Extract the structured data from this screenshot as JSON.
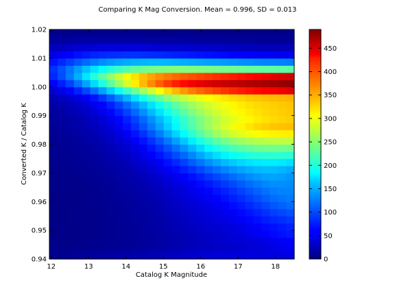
{
  "chart_data": {
    "type": "heatmap",
    "title": "Comparing K Mag Conversion. Mean = 0.996, SD = 0.013",
    "xlabel": "Catalog K Magnitude",
    "ylabel": "Converted K / Catalog K",
    "xlim": [
      11.95,
      18.5
    ],
    "ylim": [
      0.94,
      1.02
    ],
    "x_ticks": [
      "12",
      "13",
      "14",
      "15",
      "16",
      "17",
      "18"
    ],
    "x_tick_values": [
      12,
      13,
      14,
      15,
      16,
      17,
      18
    ],
    "y_ticks": [
      "0.94",
      "0.95",
      "0.96",
      "0.97",
      "0.98",
      "0.99",
      "1.00",
      "1.01",
      "1.02"
    ],
    "y_tick_values": [
      0.94,
      0.95,
      0.96,
      0.97,
      0.98,
      0.99,
      1.0,
      1.01,
      1.02
    ],
    "colorbar_range": [
      0,
      490
    ],
    "colorbar_ticks": [
      "0",
      "50",
      "100",
      "150",
      "200",
      "250",
      "300",
      "350",
      "400",
      "450"
    ],
    "colorbar_tick_values": [
      0,
      50,
      100,
      150,
      200,
      250,
      300,
      350,
      400,
      450
    ],
    "colormap": "jet",
    "grid": false,
    "bins": {
      "nx": 30,
      "ny": 32
    },
    "counts": [
      [
        6,
        7,
        9,
        11,
        12,
        14,
        14,
        16,
        18,
        20,
        22,
        24,
        25,
        27,
        30,
        32,
        34,
        37,
        39,
        41,
        43,
        44,
        45,
        46,
        46,
        46,
        46,
        46,
        46,
        47
      ],
      [
        5,
        5,
        6,
        7,
        7,
        8,
        9,
        10,
        11,
        12,
        13,
        15,
        17,
        19,
        21,
        24,
        26,
        28,
        30,
        32,
        34,
        35,
        35,
        37,
        40,
        42,
        45,
        48,
        52,
        55
      ],
      [
        4,
        4,
        4,
        5,
        6,
        6,
        7,
        8,
        9,
        10,
        11,
        13,
        15,
        17,
        20,
        22,
        25,
        27,
        30,
        32,
        35,
        37,
        39,
        41,
        43,
        45,
        48,
        52,
        56,
        60
      ],
      [
        3,
        4,
        4,
        5,
        5,
        6,
        7,
        8,
        9,
        10,
        11,
        13,
        15,
        17,
        20,
        22,
        25,
        28,
        30,
        33,
        35,
        38,
        42,
        46,
        50,
        55,
        60,
        65,
        69,
        73
      ],
      [
        3,
        4,
        4,
        5,
        5,
        6,
        7,
        8,
        9,
        10,
        12,
        14,
        16,
        19,
        22,
        25,
        28,
        32,
        35,
        38,
        40,
        43,
        46,
        50,
        55,
        60,
        65,
        69,
        73,
        77
      ],
      [
        3,
        3,
        4,
        5,
        5,
        6,
        7,
        8,
        10,
        11,
        13,
        15,
        17,
        20,
        23,
        27,
        30,
        34,
        37,
        41,
        44,
        48,
        52,
        57,
        63,
        68,
        74,
        79,
        83,
        87
      ],
      [
        3,
        3,
        4,
        5,
        5,
        6,
        7,
        9,
        10,
        12,
        14,
        16,
        19,
        22,
        25,
        29,
        33,
        37,
        41,
        45,
        49,
        53,
        58,
        64,
        70,
        77,
        84,
        91,
        95,
        99
      ],
      [
        3,
        3,
        4,
        5,
        5,
        6,
        8,
        9,
        11,
        13,
        15,
        17,
        20,
        24,
        28,
        32,
        36,
        41,
        45,
        50,
        55,
        60,
        66,
        73,
        80,
        87,
        95,
        102,
        108,
        113
      ],
      [
        3,
        4,
        4,
        5,
        6,
        7,
        8,
        10,
        12,
        14,
        16,
        19,
        22,
        26,
        30,
        35,
        40,
        45,
        50,
        56,
        62,
        68,
        75,
        82,
        90,
        98,
        106,
        113,
        117,
        120
      ],
      [
        4,
        4,
        5,
        5,
        6,
        7,
        9,
        11,
        13,
        15,
        18,
        21,
        25,
        29,
        34,
        39,
        45,
        51,
        57,
        63,
        70,
        77,
        85,
        93,
        101,
        109,
        116,
        122,
        124,
        125
      ],
      [
        4,
        5,
        5,
        6,
        7,
        8,
        10,
        12,
        14,
        17,
        20,
        24,
        28,
        33,
        39,
        45,
        51,
        58,
        65,
        72,
        80,
        88,
        96,
        105,
        113,
        120,
        126,
        130,
        130,
        128
      ],
      [
        5,
        5,
        6,
        7,
        8,
        9,
        11,
        14,
        17,
        20,
        24,
        28,
        33,
        39,
        46,
        53,
        60,
        68,
        77,
        86,
        95,
        104,
        113,
        121,
        128,
        134,
        138,
        140,
        138,
        134
      ],
      [
        5,
        6,
        7,
        8,
        9,
        11,
        13,
        16,
        19,
        23,
        28,
        34,
        40,
        48,
        56,
        65,
        75,
        85,
        96,
        106,
        116,
        125,
        133,
        140,
        146,
        150,
        152,
        152,
        149,
        144
      ],
      [
        6,
        7,
        8,
        9,
        11,
        13,
        16,
        19,
        23,
        28,
        34,
        41,
        49,
        58,
        69,
        80,
        92,
        105,
        117,
        129,
        140,
        150,
        158,
        165,
        170,
        173,
        175,
        175,
        173,
        170
      ],
      [
        7,
        8,
        9,
        11,
        13,
        15,
        18,
        22,
        27,
        33,
        40,
        49,
        59,
        70,
        83,
        97,
        111,
        126,
        141,
        155,
        168,
        179,
        188,
        195,
        200,
        203,
        205,
        206,
        205,
        203
      ],
      [
        8,
        9,
        10,
        12,
        14,
        17,
        21,
        26,
        32,
        39,
        48,
        58,
        70,
        84,
        99,
        115,
        132,
        149,
        166,
        182,
        196,
        208,
        218,
        226,
        232,
        236,
        238,
        239,
        239,
        238
      ],
      [
        9,
        10,
        12,
        14,
        17,
        20,
        25,
        31,
        38,
        47,
        58,
        70,
        85,
        101,
        119,
        138,
        157,
        176,
        195,
        212,
        227,
        240,
        251,
        259,
        265,
        270,
        273,
        275,
        276,
        276
      ],
      [
        10,
        12,
        14,
        17,
        20,
        24,
        30,
        37,
        46,
        57,
        70,
        85,
        102,
        121,
        141,
        162,
        183,
        204,
        224,
        242,
        258,
        272,
        284,
        293,
        300,
        305,
        309,
        312,
        313,
        314
      ],
      [
        12,
        14,
        17,
        20,
        24,
        29,
        36,
        45,
        56,
        69,
        84,
        101,
        120,
        140,
        161,
        182,
        203,
        223,
        242,
        259,
        274,
        288,
        300,
        310,
        318,
        325,
        330,
        334,
        336,
        337
      ],
      [
        13,
        15,
        18,
        22,
        27,
        33,
        41,
        51,
        63,
        77,
        93,
        111,
        130,
        150,
        170,
        190,
        209,
        227,
        244,
        259,
        272,
        284,
        294,
        302,
        309,
        315,
        320,
        324,
        327,
        330
      ],
      [
        15,
        18,
        22,
        27,
        33,
        41,
        51,
        63,
        77,
        93,
        111,
        130,
        150,
        170,
        190,
        209,
        227,
        244,
        259,
        272,
        284,
        294,
        302,
        309,
        315,
        320,
        324,
        327,
        330,
        332
      ],
      [
        18,
        22,
        27,
        33,
        41,
        51,
        63,
        77,
        93,
        111,
        130,
        150,
        170,
        190,
        209,
        227,
        244,
        259,
        272,
        284,
        294,
        302,
        309,
        315,
        320,
        324,
        327,
        330,
        332,
        334
      ],
      [
        25,
        30,
        37,
        46,
        57,
        70,
        86,
        105,
        126,
        148,
        170,
        192,
        213,
        232,
        249,
        264,
        277,
        288,
        297,
        305,
        312,
        318,
        323,
        327,
        331,
        334,
        337,
        339,
        341,
        343
      ],
      [
        40,
        50,
        62,
        77,
        95,
        115,
        138,
        162,
        187,
        212,
        237,
        261,
        284,
        305,
        324,
        341,
        356,
        369,
        380,
        389,
        397,
        404,
        410,
        416,
        421,
        425,
        429,
        433,
        437,
        441
      ],
      [
        60,
        75,
        93,
        115,
        140,
        167,
        196,
        226,
        256,
        286,
        314,
        340,
        363,
        383,
        400,
        414,
        425,
        434,
        441,
        447,
        452,
        456,
        460,
        463,
        466,
        469,
        472,
        475,
        478,
        480
      ],
      [
        80,
        98,
        120,
        145,
        172,
        200,
        228,
        255,
        280,
        302,
        321,
        337,
        350,
        361,
        370,
        378,
        385,
        391,
        396,
        401,
        406,
        411,
        416,
        421,
        426,
        431,
        436,
        441,
        446,
        450
      ],
      [
        85,
        100,
        117,
        135,
        153,
        170,
        186,
        200,
        212,
        222,
        230,
        236,
        240,
        243,
        245,
        246,
        246,
        245,
        244,
        242,
        240,
        238,
        236,
        234,
        232,
        230,
        229,
        228,
        227,
        226
      ],
      [
        70,
        80,
        91,
        102,
        112,
        121,
        129,
        135,
        140,
        144,
        147,
        149,
        150,
        150,
        149,
        147,
        145,
        143,
        141,
        139,
        137,
        135,
        133,
        131,
        129,
        127,
        125,
        124,
        123,
        122
      ],
      [
        50,
        56,
        62,
        68,
        73,
        77,
        80,
        82,
        83,
        84,
        84,
        83,
        82,
        80,
        78,
        76,
        74,
        72,
        70,
        68,
        66,
        64,
        62,
        60,
        58,
        57,
        56,
        55,
        54,
        53
      ],
      [
        30,
        33,
        36,
        39,
        41,
        43,
        44,
        45,
        45,
        45,
        44,
        43,
        42,
        41,
        40,
        39,
        38,
        37,
        36,
        35,
        34,
        33,
        32,
        31,
        30,
        29,
        28,
        28,
        27,
        27
      ],
      [
        15,
        16,
        17,
        18,
        19,
        19,
        20,
        20,
        20,
        20,
        19,
        19,
        18,
        18,
        17,
        17,
        16,
        16,
        15,
        15,
        14,
        14,
        13,
        13,
        13,
        12,
        12,
        12,
        12,
        12
      ],
      [
        7,
        7,
        8,
        8,
        8,
        8,
        8,
        8,
        8,
        8,
        8,
        8,
        7,
        7,
        7,
        7,
        7,
        7,
        6,
        6,
        6,
        6,
        6,
        6,
        6,
        6,
        6,
        6,
        6,
        6
      ]
    ]
  }
}
